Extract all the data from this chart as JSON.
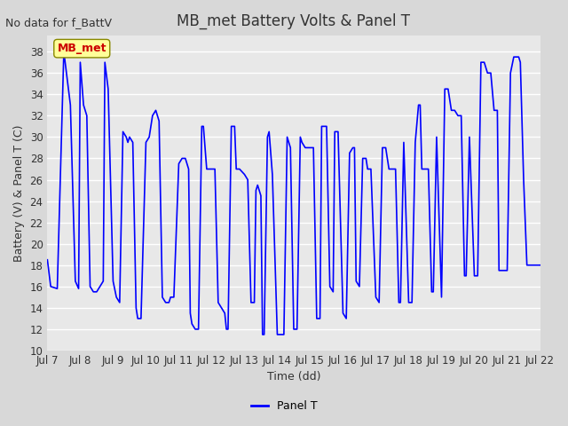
{
  "title": "MB_met Battery Volts & Panel T",
  "no_data_label": "No data for f_BattV",
  "ylabel": "Battery (V) & Panel T (C)",
  "xlabel": "Time (dd)",
  "legend_label": "Panel T",
  "legend_color": "#0000ff",
  "line_color": "#0000ff",
  "bg_color": "#e8e8e8",
  "plot_bg_color": "#e8e8e8",
  "ylim": [
    10,
    39
  ],
  "yticks": [
    10,
    12,
    14,
    16,
    18,
    20,
    22,
    24,
    26,
    28,
    30,
    32,
    34,
    36,
    38
  ],
  "x_start": 7.0,
  "x_end": 22.0,
  "xtick_positions": [
    7,
    8,
    9,
    10,
    11,
    12,
    13,
    14,
    15,
    16,
    17,
    18,
    19,
    20,
    21,
    22
  ],
  "xtick_labels": [
    "Jul 7",
    "Jul 8",
    "Jul 9",
    "Jul 10",
    "Jul 11",
    "Jul 12",
    "Jul 13",
    "Jul 14",
    "Jul 15",
    "Jul 16",
    "Jul 17",
    "Jul 18",
    "Jul 19",
    "Jul 20",
    "Jul 21",
    "Jul 22"
  ],
  "mb_met_label": "MB_met",
  "mb_met_box_color": "#ffff99",
  "mb_met_text_color": "#cc0000",
  "panel_t_data_x": [
    7.0,
    7.1,
    7.3,
    7.5,
    7.7,
    7.85,
    7.95,
    8.0,
    8.1,
    8.2,
    8.3,
    8.4,
    8.5,
    8.6,
    8.7,
    8.75,
    8.85,
    9.0,
    9.1,
    9.2,
    9.3,
    9.4,
    9.45,
    9.5,
    9.6,
    9.7,
    9.75,
    9.8,
    9.85,
    10.0,
    10.1,
    10.2,
    10.3,
    10.35,
    10.4,
    10.5,
    10.6,
    10.7,
    10.75,
    10.8,
    10.85,
    11.0,
    11.1,
    11.2,
    11.3,
    11.35,
    11.4,
    11.5,
    11.6,
    11.7,
    11.75,
    11.85,
    12.0,
    12.1,
    12.2,
    12.3,
    12.4,
    12.45,
    12.5,
    12.6,
    12.7,
    12.75,
    12.85,
    13.0,
    13.1,
    13.2,
    13.3,
    13.35,
    13.4,
    13.45,
    13.5,
    13.55,
    13.6,
    13.7,
    13.75,
    13.85,
    14.0,
    14.1,
    14.2,
    14.3,
    14.35,
    14.4,
    14.5,
    14.6,
    14.7,
    14.75,
    14.85,
    15.0,
    15.1,
    15.2,
    15.3,
    15.35,
    15.4,
    15.5,
    15.6,
    15.7,
    15.75,
    15.85,
    16.0,
    16.1,
    16.2,
    16.3,
    16.35,
    16.4,
    16.5,
    16.6,
    16.7,
    16.75,
    16.85,
    17.0,
    17.1,
    17.2,
    17.25,
    17.3,
    17.4,
    17.5,
    17.6,
    17.7,
    17.75,
    17.85,
    18.0,
    18.1,
    18.2,
    18.3,
    18.35,
    18.4,
    18.5,
    18.6,
    18.7,
    18.75,
    18.85,
    19.0,
    19.1,
    19.2,
    19.3,
    19.4,
    19.5,
    19.6,
    19.7,
    19.75,
    19.85,
    20.0,
    20.1,
    20.2,
    20.3,
    20.35,
    20.4,
    20.5,
    20.6,
    20.7,
    20.75,
    20.85,
    21.0,
    21.1,
    21.2,
    21.3,
    21.35,
    21.4,
    21.5,
    21.6,
    21.75,
    21.85,
    22.0
  ],
  "panel_t_data_y": [
    18.5,
    16.0,
    15.8,
    38.0,
    33.0,
    16.5,
    15.8,
    37.0,
    33.0,
    32.0,
    16.0,
    15.5,
    15.5,
    16.0,
    16.5,
    37.0,
    34.5,
    16.5,
    15.0,
    14.5,
    30.5,
    30.0,
    29.5,
    30.0,
    29.5,
    14.0,
    13.0,
    13.0,
    13.0,
    29.5,
    30.0,
    32.0,
    32.5,
    32.0,
    31.5,
    15.0,
    14.5,
    14.5,
    15.0,
    15.0,
    15.0,
    27.5,
    28.0,
    28.0,
    27.0,
    13.5,
    12.5,
    12.0,
    12.0,
    31.0,
    31.0,
    27.0,
    27.0,
    27.0,
    14.5,
    14.0,
    13.5,
    12.0,
    12.0,
    31.0,
    31.0,
    27.0,
    27.0,
    26.5,
    26.0,
    14.5,
    14.5,
    25.0,
    25.5,
    25.0,
    24.5,
    11.5,
    11.5,
    30.0,
    30.5,
    26.5,
    11.5,
    11.5,
    11.5,
    30.0,
    29.5,
    29.0,
    12.0,
    12.0,
    30.0,
    29.5,
    29.0,
    29.0,
    29.0,
    13.0,
    13.0,
    31.0,
    31.0,
    31.0,
    16.0,
    15.5,
    30.5,
    30.5,
    13.5,
    13.0,
    28.5,
    29.0,
    29.0,
    16.5,
    16.0,
    28.0,
    28.0,
    27.0,
    27.0,
    15.0,
    14.5,
    29.0,
    29.0,
    29.0,
    27.0,
    27.0,
    27.0,
    14.5,
    14.5,
    29.5,
    14.5,
    14.5,
    29.5,
    33.0,
    33.0,
    27.0,
    27.0,
    27.0,
    15.5,
    15.5,
    30.0,
    15.0,
    34.5,
    34.5,
    32.5,
    32.5,
    32.0,
    32.0,
    17.0,
    17.0,
    30.0,
    17.0,
    17.0,
    37.0,
    37.0,
    36.5,
    36.0,
    36.0,
    32.5,
    32.5,
    17.5,
    17.5,
    17.5,
    36.0,
    37.5,
    37.5,
    37.5,
    37.0,
    26.0,
    18.0,
    18.0,
    18.0,
    18.0
  ]
}
